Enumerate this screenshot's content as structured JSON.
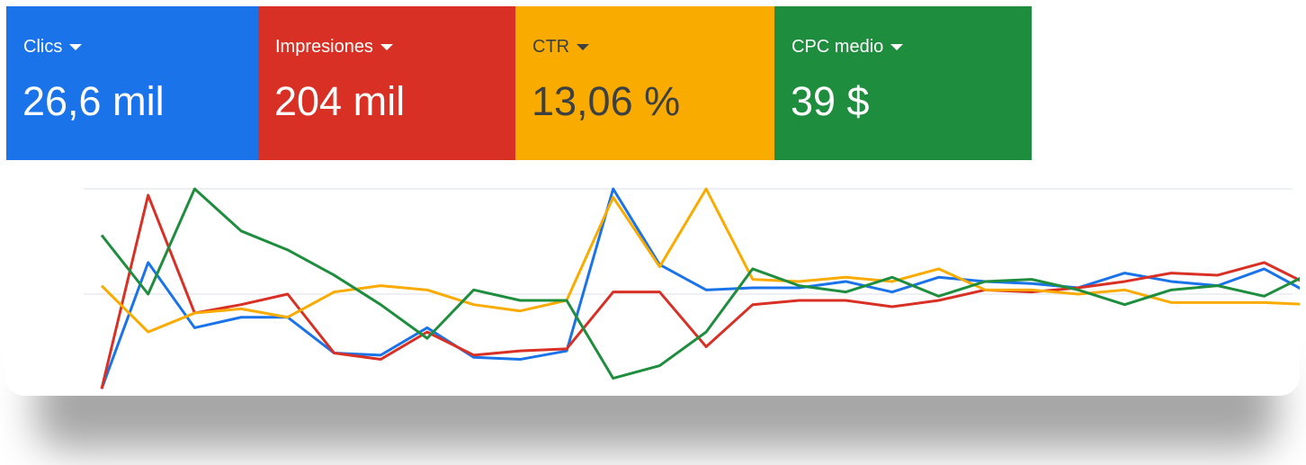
{
  "metrics": [
    {
      "label": "Clics",
      "value": "26,6 mil",
      "color": "#1a73e8",
      "text_color": "#ffffff",
      "icon": "caret-down-icon"
    },
    {
      "label": "Impresiones",
      "value": "204 mil",
      "color": "#d93025",
      "text_color": "#ffffff",
      "icon": "caret-down-icon"
    },
    {
      "label": "CTR",
      "value": "13,06 %",
      "color": "#f9ab00",
      "text_color": "#3c4043",
      "icon": "caret-down-icon"
    },
    {
      "label": "CPC medio",
      "value": "39 $",
      "color": "#1e8e3e",
      "text_color": "#ffffff",
      "icon": "caret-down-icon"
    }
  ],
  "chart_data": {
    "type": "line",
    "grid": true,
    "normalized_scale": [
      0,
      100
    ],
    "series": [
      {
        "metric": "Clics",
        "color": "#1a73e8",
        "values": [
          5,
          65,
          34,
          39,
          39,
          22,
          21,
          34,
          20,
          19,
          23,
          100,
          64,
          52,
          53,
          53,
          56,
          51,
          58,
          56,
          55,
          53,
          60,
          56,
          54,
          62,
          50
        ]
      },
      {
        "metric": "Impresiones",
        "color": "#d93025",
        "values": [
          5,
          97,
          41,
          45,
          50,
          22,
          19,
          32,
          21,
          23,
          24,
          51,
          51,
          25,
          45,
          47,
          47,
          44,
          47,
          52,
          51,
          53,
          56,
          60,
          59,
          65,
          54
        ]
      },
      {
        "metric": "CTR",
        "color": "#f9ab00",
        "values": [
          54,
          32,
          41,
          43,
          39,
          51,
          54,
          52,
          45,
          42,
          47,
          96,
          63,
          100,
          57,
          56,
          58,
          56,
          62,
          52,
          52,
          50,
          52,
          46,
          46,
          46,
          45
        ]
      },
      {
        "metric": "CPC medio",
        "color": "#1e8e3e",
        "values": [
          78,
          50,
          100,
          80,
          71,
          59,
          45,
          29,
          52,
          47,
          47,
          10,
          16,
          32,
          62,
          54,
          51,
          58,
          49,
          56,
          57,
          52,
          45,
          52,
          54,
          49,
          60
        ]
      }
    ]
  }
}
